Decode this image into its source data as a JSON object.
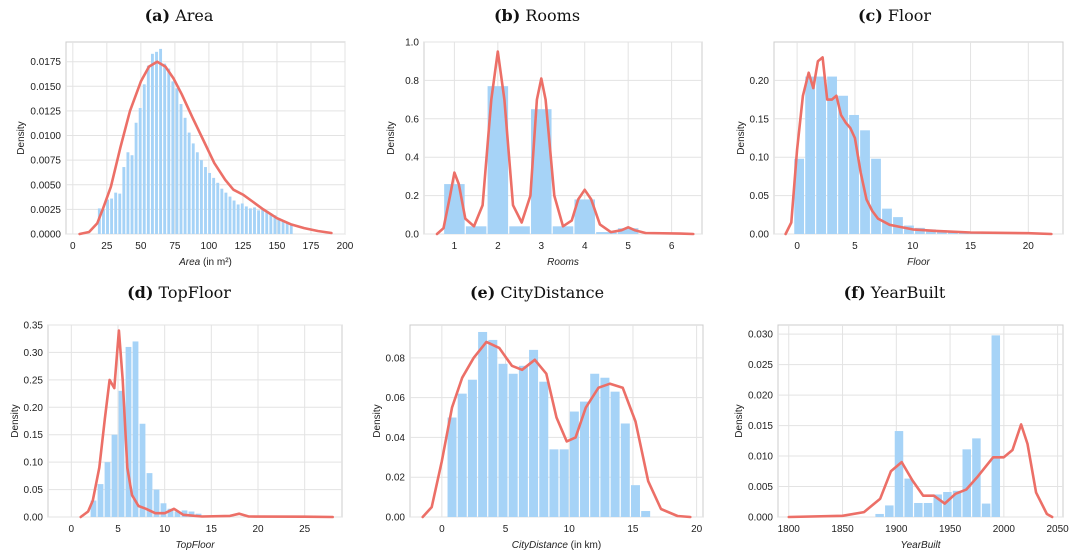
{
  "chart_data": [
    {
      "type": "bar",
      "panel_label": "(a)",
      "title": "Area",
      "xlabel": "Area",
      "xlabel_unit": " (in m²)",
      "ylabel": "Density",
      "xlim": [
        -5,
        200
      ],
      "ylim": [
        0,
        0.0195
      ],
      "xticks": [
        0,
        25,
        50,
        75,
        100,
        125,
        150,
        175,
        200
      ],
      "yticks": [
        0.0,
        0.0025,
        0.005,
        0.0075,
        0.01,
        0.0125,
        0.015,
        0.0175
      ],
      "ytick_decimals": 4,
      "grid": true,
      "bins": {
        "start": 18,
        "width": 3,
        "values": [
          0.0026,
          0.0025,
          0.0035,
          0.0036,
          0.0042,
          0.0041,
          0.0068,
          0.0083,
          0.008,
          0.0113,
          0.0128,
          0.0152,
          0.0171,
          0.0183,
          0.0185,
          0.0188,
          0.0173,
          0.0168,
          0.0155,
          0.0148,
          0.0132,
          0.0118,
          0.0103,
          0.0092,
          0.0083,
          0.0075,
          0.0068,
          0.0062,
          0.0057,
          0.0052,
          0.0046,
          0.0042,
          0.0038,
          0.0034,
          0.003,
          0.0031,
          0.0028,
          0.0026,
          0.0027,
          0.0024,
          0.0025,
          0.0023,
          0.0021,
          0.0019,
          0.0016,
          0.0014,
          0.0011,
          0.0009
        ]
      },
      "kde": [
        [
          5,
          0
        ],
        [
          12,
          0.0002
        ],
        [
          18,
          0.0011
        ],
        [
          22,
          0.0025
        ],
        [
          28,
          0.0048
        ],
        [
          35,
          0.0088
        ],
        [
          42,
          0.0125
        ],
        [
          50,
          0.0155
        ],
        [
          56,
          0.017
        ],
        [
          62,
          0.0175
        ],
        [
          68,
          0.017
        ],
        [
          74,
          0.0158
        ],
        [
          80,
          0.0142
        ],
        [
          88,
          0.0118
        ],
        [
          96,
          0.0095
        ],
        [
          104,
          0.0072
        ],
        [
          112,
          0.0055
        ],
        [
          118,
          0.0045
        ],
        [
          125,
          0.004
        ],
        [
          132,
          0.0033
        ],
        [
          140,
          0.0025
        ],
        [
          150,
          0.0016
        ],
        [
          160,
          0.001
        ],
        [
          170,
          0.0006
        ],
        [
          180,
          0.0003
        ],
        [
          190,
          0.0001
        ]
      ]
    },
    {
      "type": "bar",
      "panel_label": "(b)",
      "title": "Rooms",
      "xlabel": "Rooms",
      "xlabel_unit": "",
      "ylabel": "Density",
      "xlim": [
        0.3,
        6.7
      ],
      "ylim": [
        0,
        1.0
      ],
      "xticks": [
        1,
        2,
        3,
        4,
        5,
        6
      ],
      "yticks": [
        0.0,
        0.2,
        0.4,
        0.6,
        0.8,
        1.0
      ],
      "ytick_decimals": 1,
      "grid": true,
      "bins": {
        "start": 0.75,
        "width": 0.5,
        "values": [
          0.26,
          0.04,
          0.77,
          0.04,
          0.65,
          0.04,
          0.18,
          0.01,
          0.03
        ]
      },
      "kde": [
        [
          0.6,
          0
        ],
        [
          0.75,
          0.03
        ],
        [
          0.9,
          0.2
        ],
        [
          1.0,
          0.32
        ],
        [
          1.1,
          0.26
        ],
        [
          1.25,
          0.08
        ],
        [
          1.45,
          0.04
        ],
        [
          1.65,
          0.15
        ],
        [
          1.85,
          0.7
        ],
        [
          2.0,
          0.95
        ],
        [
          2.15,
          0.7
        ],
        [
          2.35,
          0.15
        ],
        [
          2.55,
          0.06
        ],
        [
          2.75,
          0.2
        ],
        [
          2.9,
          0.7
        ],
        [
          3.0,
          0.81
        ],
        [
          3.1,
          0.7
        ],
        [
          3.3,
          0.2
        ],
        [
          3.5,
          0.04
        ],
        [
          3.7,
          0.07
        ],
        [
          3.85,
          0.18
        ],
        [
          4.0,
          0.23
        ],
        [
          4.15,
          0.18
        ],
        [
          4.35,
          0.05
        ],
        [
          4.6,
          0.01
        ],
        [
          4.85,
          0.02
        ],
        [
          5.0,
          0.035
        ],
        [
          5.15,
          0.02
        ],
        [
          5.4,
          0.005
        ],
        [
          6.2,
          0.002
        ],
        [
          6.5,
          0
        ]
      ]
    },
    {
      "type": "bar",
      "panel_label": "(c)",
      "title": "Floor",
      "xlabel": "Floor",
      "xlabel_unit": "",
      "ylabel": "Density",
      "xlim": [
        -2,
        23
      ],
      "ylim": [
        0,
        0.25
      ],
      "xticks": [
        0,
        5,
        10,
        15,
        20
      ],
      "yticks": [
        0.0,
        0.05,
        0.1,
        0.15,
        0.2
      ],
      "ytick_decimals": 2,
      "grid": true,
      "bins": {
        "start": -0.3,
        "width": 0.95,
        "values": [
          0.098,
          0.205,
          0.205,
          0.205,
          0.18,
          0.155,
          0.135,
          0.098,
          0.033,
          0.022,
          0.011,
          0.008,
          0.006,
          0.005,
          0.004,
          0.003,
          0.002,
          0.002,
          0.001,
          0.001,
          0.001,
          0.001,
          0.001
        ]
      },
      "kde": [
        [
          -1,
          0
        ],
        [
          -0.5,
          0.015
        ],
        [
          0,
          0.11
        ],
        [
          0.5,
          0.18
        ],
        [
          1,
          0.21
        ],
        [
          1.4,
          0.19
        ],
        [
          1.8,
          0.225
        ],
        [
          2.2,
          0.23
        ],
        [
          2.6,
          0.175
        ],
        [
          3,
          0.175
        ],
        [
          3.4,
          0.18
        ],
        [
          3.8,
          0.155
        ],
        [
          4.2,
          0.145
        ],
        [
          4.6,
          0.138
        ],
        [
          5,
          0.125
        ],
        [
          5.5,
          0.08
        ],
        [
          6,
          0.045
        ],
        [
          6.5,
          0.03
        ],
        [
          7,
          0.02
        ],
        [
          8,
          0.012
        ],
        [
          9,
          0.009
        ],
        [
          10,
          0.006
        ],
        [
          12,
          0.004
        ],
        [
          15,
          0.002
        ],
        [
          20,
          0.001
        ],
        [
          22,
          0
        ]
      ]
    },
    {
      "type": "bar",
      "panel_label": "(d)",
      "title": "TopFloor",
      "xlabel": "TopFloor",
      "xlabel_unit": "",
      "ylabel": "Density",
      "xlim": [
        -2.5,
        29
      ],
      "ylim": [
        0,
        0.35
      ],
      "xticks": [
        0,
        5,
        10,
        15,
        20,
        25
      ],
      "yticks": [
        0.0,
        0.05,
        0.1,
        0.15,
        0.2,
        0.25,
        0.3,
        0.35
      ],
      "ytick_decimals": 2,
      "grid": true,
      "bins": {
        "start": 2,
        "width": 0.75,
        "values": [
          0.03,
          0.06,
          0.1,
          0.15,
          0.23,
          0.31,
          0.32,
          0.17,
          0.08,
          0.05,
          0.025,
          0.015,
          0.01,
          0.012,
          0.01,
          0.006
        ]
      },
      "kde": [
        [
          1,
          0
        ],
        [
          1.8,
          0.01
        ],
        [
          2.3,
          0.03
        ],
        [
          3,
          0.09
        ],
        [
          3.6,
          0.18
        ],
        [
          4.1,
          0.25
        ],
        [
          4.6,
          0.235
        ],
        [
          5.1,
          0.34
        ],
        [
          5.5,
          0.25
        ],
        [
          6,
          0.09
        ],
        [
          6.5,
          0.04
        ],
        [
          7.2,
          0.02
        ],
        [
          8,
          0.015
        ],
        [
          9,
          0.007
        ],
        [
          10,
          0.007
        ],
        [
          11,
          0.015
        ],
        [
          12,
          0.004
        ],
        [
          14,
          0.001
        ],
        [
          17,
          0.002
        ],
        [
          18,
          0.006
        ],
        [
          19,
          0.001
        ],
        [
          25,
          0.0005
        ],
        [
          28,
          0
        ]
      ]
    },
    {
      "type": "bar",
      "panel_label": "(e)",
      "title": "CityDistance",
      "xlabel": "CityDistance",
      "xlabel_unit": " (in km)",
      "ylabel": "Density",
      "xlim": [
        -2.5,
        20.5
      ],
      "ylim": [
        0,
        0.0965
      ],
      "xticks": [
        0,
        5,
        10,
        15,
        20
      ],
      "yticks": [
        0.0,
        0.02,
        0.04,
        0.06,
        0.08
      ],
      "ytick_decimals": 2,
      "grid": true,
      "bins": {
        "start": 0.4,
        "width": 0.8,
        "values": [
          0.05,
          0.062,
          0.069,
          0.093,
          0.089,
          0.077,
          0.072,
          0.076,
          0.084,
          0.068,
          0.034,
          0.034,
          0.053,
          0.058,
          0.072,
          0.07,
          0.063,
          0.047,
          0.016,
          0.003
        ]
      },
      "kde": [
        [
          -1.5,
          0
        ],
        [
          -0.8,
          0.005
        ],
        [
          0,
          0.028
        ],
        [
          0.8,
          0.055
        ],
        [
          1.6,
          0.07
        ],
        [
          2.5,
          0.08
        ],
        [
          3.5,
          0.088
        ],
        [
          4.5,
          0.085
        ],
        [
          5.5,
          0.076
        ],
        [
          6.3,
          0.074
        ],
        [
          7.3,
          0.079
        ],
        [
          8.2,
          0.072
        ],
        [
          9,
          0.05
        ],
        [
          9.8,
          0.038
        ],
        [
          10.5,
          0.04
        ],
        [
          11.3,
          0.055
        ],
        [
          12.3,
          0.065
        ],
        [
          13.2,
          0.067
        ],
        [
          14.2,
          0.065
        ],
        [
          15.2,
          0.048
        ],
        [
          16.2,
          0.018
        ],
        [
          17.2,
          0.004
        ],
        [
          18.5,
          0.0005
        ],
        [
          19.5,
          0
        ]
      ]
    },
    {
      "type": "bar",
      "panel_label": "(f)",
      "title": "YearBuilt",
      "xlabel": "YearBuilt",
      "xlabel_unit": "",
      "ylabel": "Density",
      "xlim": [
        1790,
        2055
      ],
      "ylim": [
        0,
        0.0315
      ],
      "xticks": [
        1800,
        1850,
        1900,
        1950,
        2000,
        2050
      ],
      "yticks": [
        0.0,
        0.005,
        0.01,
        0.015,
        0.02,
        0.025,
        0.03
      ],
      "ytick_decimals": 3,
      "grid": true,
      "bins": {
        "start": 1880,
        "width": 9,
        "values": [
          0.0005,
          0.0019,
          0.0141,
          0.0063,
          0.0023,
          0.0023,
          0.0037,
          0.0041,
          0.0043,
          0.0111,
          0.0129,
          0.0022,
          0.0298
        ]
      },
      "kde": [
        [
          1800,
          0
        ],
        [
          1850,
          0.0002
        ],
        [
          1870,
          0.0008
        ],
        [
          1885,
          0.003
        ],
        [
          1895,
          0.0075
        ],
        [
          1905,
          0.009
        ],
        [
          1915,
          0.006
        ],
        [
          1925,
          0.0035
        ],
        [
          1935,
          0.0035
        ],
        [
          1945,
          0.0022
        ],
        [
          1955,
          0.0038
        ],
        [
          1965,
          0.0045
        ],
        [
          1975,
          0.0065
        ],
        [
          1990,
          0.0098
        ],
        [
          2000,
          0.0098
        ],
        [
          2008,
          0.011
        ],
        [
          2016,
          0.0152
        ],
        [
          2022,
          0.012
        ],
        [
          2030,
          0.004
        ],
        [
          2040,
          0.0005
        ],
        [
          2045,
          0
        ]
      ]
    }
  ]
}
